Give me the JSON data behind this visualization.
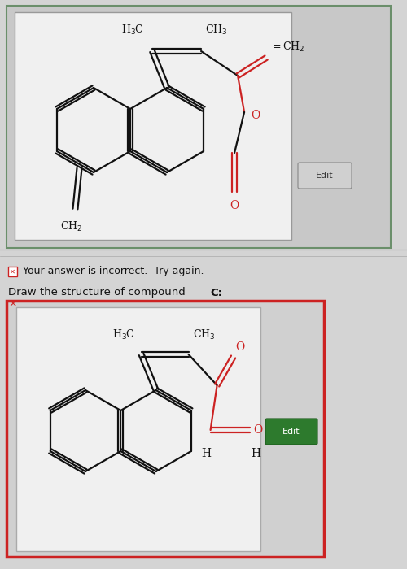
{
  "page_bg": "#d4d4d4",
  "top_section_bg": "#d4d4d4",
  "box_bg": "#efefef",
  "box1_border": "#6b8f6b",
  "box2_outer_border": "#cc2222",
  "box_inner_border": "#aaaaaa",
  "edit_btn1_bg": "#d0d0d0",
  "edit_btn1_fg": "#333333",
  "edit_btn2_bg": "#2d7a2d",
  "edit_btn2_fg": "#ffffff",
  "black": "#111111",
  "red": "#cc2222",
  "incorrect_text": "Your answer is incorrect.  Try again.",
  "draw_text": "Draw the structure of compound ",
  "draw_bold": "C:"
}
